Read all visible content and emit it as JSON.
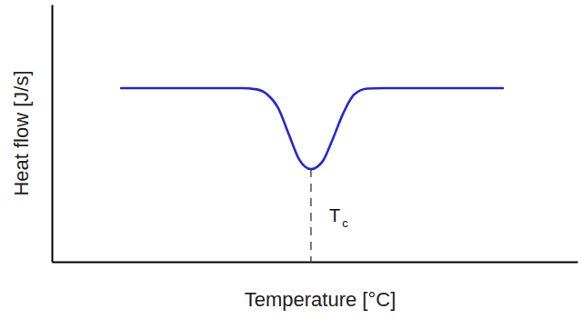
{
  "chart_data": {
    "type": "line",
    "x_label": "Temperature [°C]",
    "y_label": "Heat flow [J/s]",
    "x": [
      13,
      36,
      39,
      41,
      43,
      45,
      47,
      49.3,
      51.5,
      53.5,
      55.5,
      57.5,
      60,
      63,
      86
    ],
    "values": [
      67.5,
      67.5,
      67,
      65,
      60,
      50,
      40,
      36,
      39,
      48,
      58,
      65,
      67.3,
      67.5,
      67.5
    ],
    "color": "#2626d9",
    "line_style": "solid",
    "xlim": [
      0,
      100
    ],
    "ylim": [
      0,
      100
    ],
    "xticks": [],
    "yticks": [],
    "tick_labels": false,
    "grid": false,
    "annotations": [
      {
        "text": "T",
        "subscript": "c",
        "x": 49.3,
        "y": 36,
        "line_style": "dashed"
      }
    ]
  }
}
